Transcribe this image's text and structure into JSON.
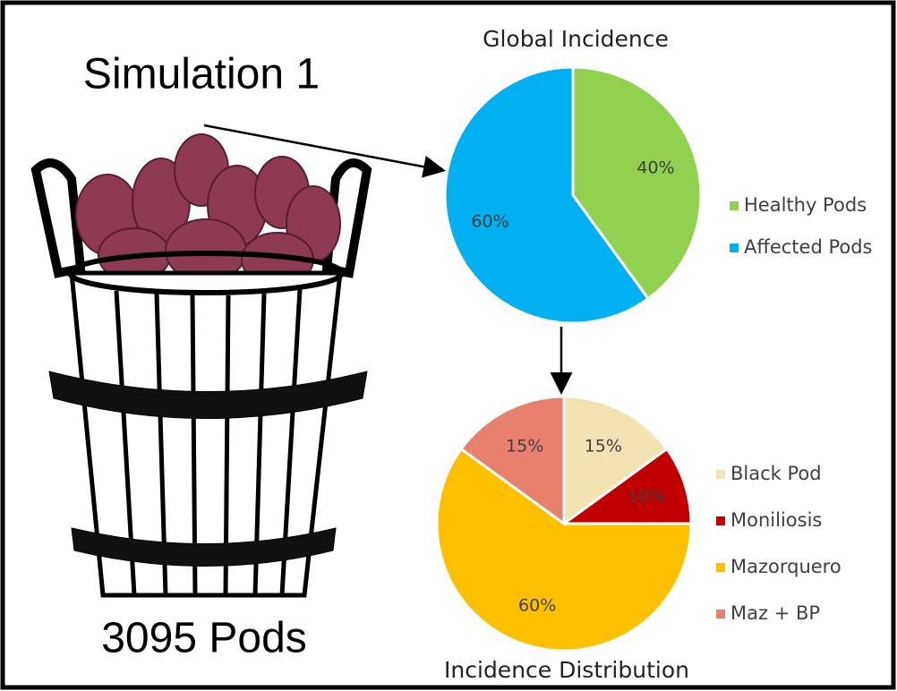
{
  "header": {
    "title": "Simulation 1",
    "caption": "3095 Pods"
  },
  "chart_data": [
    {
      "type": "pie",
      "title": "Global Incidence",
      "categories": [
        "Healthy Pods",
        "Affected Pods"
      ],
      "values": [
        40,
        60
      ],
      "value_labels": [
        "40%",
        "60%"
      ],
      "colors": [
        "#92d050",
        "#00b0f0"
      ],
      "legend": "right"
    },
    {
      "type": "pie",
      "title": "Incidence Distribution",
      "categories": [
        "Black Pod",
        "Moniliosis",
        "Mazorquero",
        "Maz + BP"
      ],
      "values": [
        15,
        10,
        60,
        15
      ],
      "value_labels": [
        "15%",
        "10%",
        "60%",
        "15%"
      ],
      "colors": [
        "#f3e3b3",
        "#c00000",
        "#ffc000",
        "#e8806e"
      ],
      "legend": "right"
    }
  ]
}
